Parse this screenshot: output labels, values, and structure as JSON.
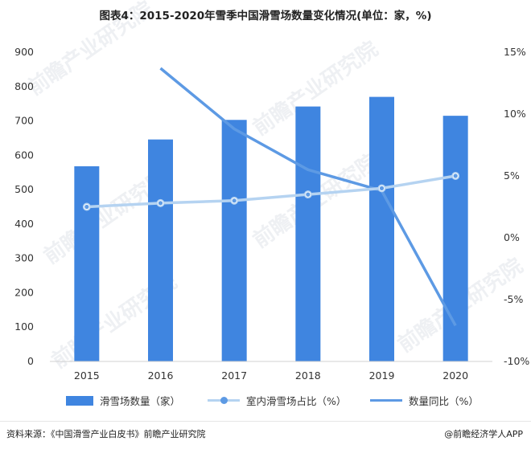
{
  "title": "图表4：2015-2020年雪季中国滑雪场数量变化情况(单位：家，%)",
  "watermark": "前瞻产业研究院",
  "chart_data": {
    "type": "bar",
    "categories": [
      "2015",
      "2016",
      "2017",
      "2018",
      "2019",
      "2020"
    ],
    "series": [
      {
        "name": "滑雪场数量（家）",
        "type": "bar",
        "axis": "left",
        "values": [
          568,
          646,
          703,
          742,
          770,
          715
        ]
      },
      {
        "name": "室内滑雪场占比（%）",
        "type": "line",
        "axis": "right",
        "markers": true,
        "values": [
          2.5,
          2.8,
          3.0,
          3.5,
          4.0,
          5.0
        ]
      },
      {
        "name": "数量同比（%）",
        "type": "line",
        "axis": "right",
        "markers": false,
        "values": [
          null,
          13.7,
          8.8,
          5.5,
          3.8,
          -7.1
        ]
      }
    ],
    "left_axis": {
      "min": 0,
      "max": 900,
      "step": 100,
      "ticks": [
        "0",
        "100",
        "200",
        "300",
        "400",
        "500",
        "600",
        "700",
        "800",
        "900"
      ]
    },
    "right_axis": {
      "min": -10,
      "max": 15,
      "step": 5,
      "ticks": [
        "-10%",
        "-5%",
        "0%",
        "5%",
        "10%",
        "15%"
      ]
    },
    "grid": false,
    "legend_position": "bottom",
    "colors": {
      "bar": "#3f85e0",
      "share_line": "#b5d3f1",
      "yoy_line": "#5d9ae4"
    }
  },
  "legend": {
    "bar_label": "滑雪场数量（家）",
    "share_label": "室内滑雪场占比（%）",
    "yoy_label": "数量同比（%）"
  },
  "footer": {
    "source": "资料来源：《中国滑雪产业白皮书》前瞻产业研究院",
    "credit": "@前瞻经济学人APP"
  }
}
